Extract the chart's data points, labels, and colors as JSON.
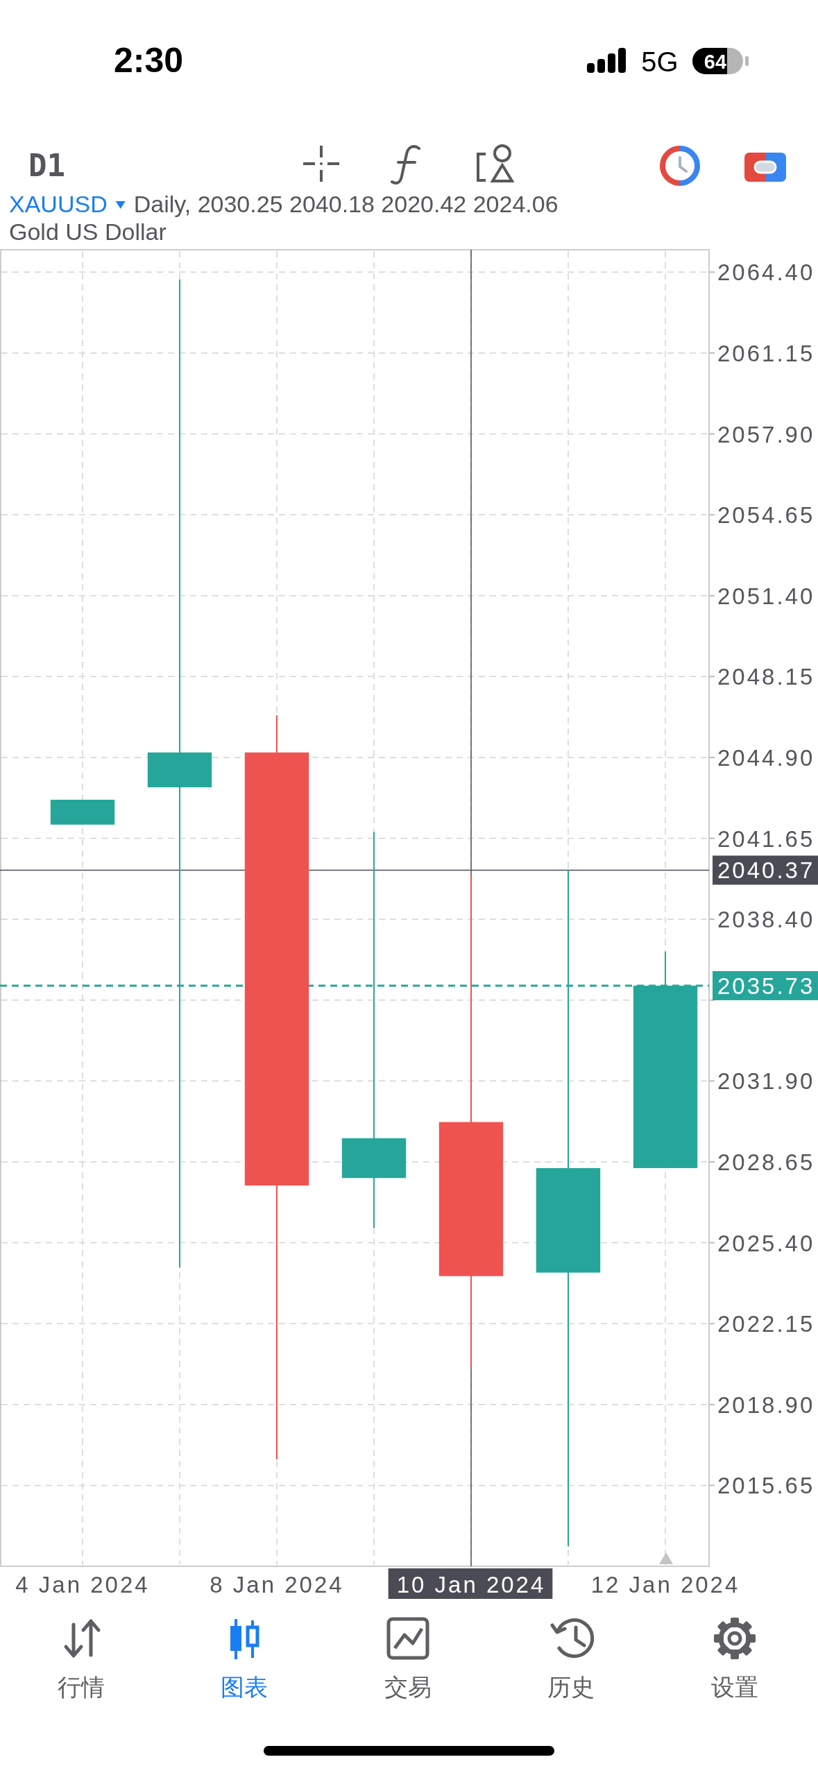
{
  "chart_data": {
    "type": "candlestick",
    "title": "XAUUSD",
    "subtitle": "Gold US Dollar",
    "annotations": [
      "Daily, 2030.25 2040.18 2020.42 2024.06",
      "2:30",
      "5G",
      "64",
      "D1",
      "行情",
      "图表",
      "交易",
      "历史",
      "设置"
    ],
    "categories": [
      "4 Jan 2024",
      null,
      "8 Jan 2024",
      null,
      "10 Jan 2024",
      null,
      "12 Jan 2024"
    ],
    "ohlc": [
      [
        2042.2,
        2043.2,
        2042.2,
        2043.2
      ],
      [
        2043.7,
        2064.1,
        2024.4,
        2045.1
      ],
      [
        2045.1,
        2046.6,
        2016.7,
        2027.7
      ],
      [
        2028.0,
        2041.9,
        2026.0,
        2029.6
      ],
      [
        2030.25,
        2040.18,
        2020.42,
        2024.06
      ],
      [
        2024.2,
        2040.4,
        2013.2,
        2028.4
      ],
      [
        2028.4,
        2037.1,
        2028.4,
        2035.73
      ]
    ],
    "colors": [
      "#26a69a",
      "#26a69a",
      "#ef5350",
      "#26a69a",
      "#ef5350",
      "#26a69a",
      "#26a69a"
    ],
    "ylim": [
      2012.4,
      2065.3
    ],
    "yticks": [
      {
        "value": 2064.4,
        "label": "2064.40"
      },
      {
        "value": 2061.15,
        "label": "2061.15"
      },
      {
        "value": 2057.9,
        "label": "2057.90"
      },
      {
        "value": 2054.65,
        "label": "2054.65"
      },
      {
        "value": 2051.4,
        "label": "2051.40"
      },
      {
        "value": 2048.15,
        "label": "2048.15"
      },
      {
        "value": 2044.9,
        "label": "2044.90"
      },
      {
        "value": 2041.65,
        "label": "2041.65"
      },
      {
        "value": 2038.4,
        "label": "2038.40"
      },
      {
        "value": 2035.15,
        "label": null
      },
      {
        "value": 2031.9,
        "label": "2031.90"
      },
      {
        "value": 2028.65,
        "label": "2028.65"
      },
      {
        "value": 2025.4,
        "label": "2025.40"
      },
      {
        "value": 2022.15,
        "label": "2022.15"
      },
      {
        "value": 2018.9,
        "label": "2018.90"
      },
      {
        "value": 2015.65,
        "label": "2015.65"
      }
    ],
    "grid": true,
    "ref_lines": [
      {
        "axis": "y",
        "value": 2040.37,
        "label": "2040.37",
        "color": "#4b4b55"
      },
      {
        "axis": "y",
        "value": 2035.73,
        "label": "2035.73",
        "color": "#26a69a",
        "line_style": "dashed"
      },
      {
        "axis": "x",
        "value": "10 Jan 2024",
        "color": "#4b4b55"
      }
    ]
  }
}
